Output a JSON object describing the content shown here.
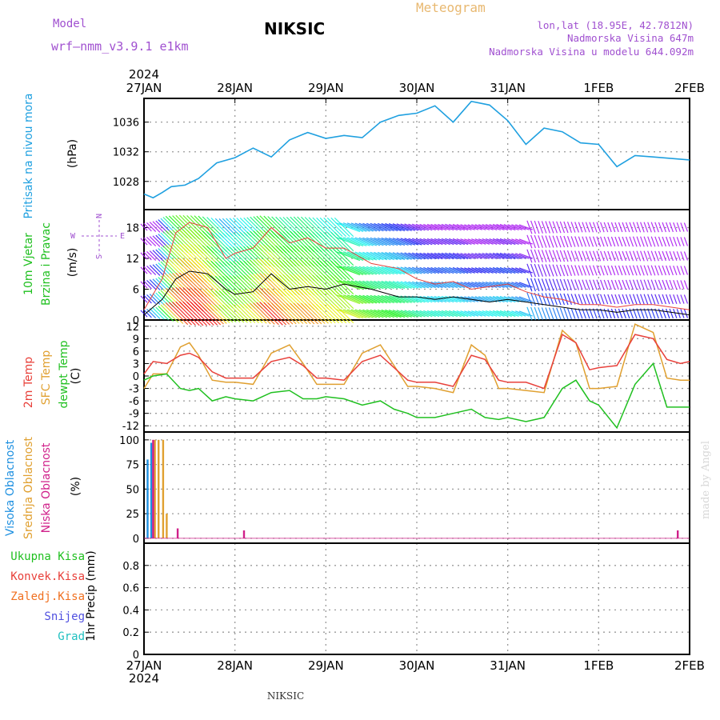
{
  "header": {
    "model_label": "Model",
    "model_name": "wrf—nmm_v3.9.1  e1km",
    "station": "NIKSIC",
    "title": "Meteogram",
    "lonlat": "lon,lat (18.95E, 42.7812N)",
    "elevation": "Nadmorska Visina 647m",
    "model_elevation": "Nadmorska Visina u modelu 644.092m",
    "footer_station": "NIKSIC",
    "credit": "made by Angel"
  },
  "colors": {
    "pressure": "#1fa0e0",
    "wind_black": "#000000",
    "t2m": "#e8403a",
    "sfc": "#e0a030",
    "dew": "#20c020",
    "high_cloud": "#1e90e0",
    "mid_cloud": "#e0a030",
    "low_cloud": "#d0208a",
    "grid": "#9a9a9a",
    "model_text": "#a050d0",
    "title_text": "#e8b870"
  },
  "chart_data": [
    {
      "type": "line",
      "panel": "pressure",
      "ylabel_left": "Pritisak na nivou mora",
      "unit": "(hPa)",
      "x_ticks": [
        "27JAN",
        "28JAN",
        "29JAN",
        "30JAN",
        "31JAN",
        "1FEB",
        "2FEB"
      ],
      "year": "2024",
      "ylim": [
        1024.2,
        1039.2
      ],
      "y_ticks": [
        1028,
        1032,
        1036
      ],
      "grid": true,
      "series": [
        {
          "key": "pressure",
          "x": [
            0,
            0.1,
            0.2,
            0.3,
            0.45,
            0.6,
            0.8,
            1.0,
            1.2,
            1.4,
            1.6,
            1.8,
            2.0,
            2.2,
            2.4,
            2.6,
            2.8,
            3.0,
            3.2,
            3.4,
            3.6,
            3.8,
            4.0,
            4.2,
            4.4,
            4.6,
            4.8,
            5.0,
            5.2,
            5.4,
            5.6,
            5.8,
            6.0
          ],
          "values": [
            1026.3,
            1025.8,
            1026.5,
            1027.3,
            1027.5,
            1028.4,
            1030.5,
            1031.2,
            1032.5,
            1031.3,
            1033.6,
            1034.6,
            1033.8,
            1034.2,
            1033.9,
            1036.0,
            1036.9,
            1037.2,
            1038.2,
            1036.0,
            1038.8,
            1038.3,
            1036.2,
            1033.0,
            1035.2,
            1034.7,
            1033.2,
            1033.0,
            1030.0,
            1031.5,
            1031.3,
            1031.1,
            1030.9
          ]
        }
      ]
    },
    {
      "type": "line",
      "panel": "wind",
      "ylabel_left": [
        "10m Vjetar",
        "Brzina i Pravac"
      ],
      "unit": "(m/s)",
      "compass": {
        "n": "N",
        "s": "S",
        "w": "W",
        "e": "E"
      },
      "ylim": [
        0,
        21.5
      ],
      "y_ticks": [
        0,
        6,
        12,
        18
      ],
      "grid": true,
      "series": [
        {
          "key": "wind_speed",
          "x": [
            0,
            0.2,
            0.35,
            0.5,
            0.7,
            0.9,
            1.0,
            1.2,
            1.4,
            1.6,
            1.8,
            2.0,
            2.2,
            2.5,
            2.8,
            3.0,
            3.2,
            3.4,
            3.6,
            3.8,
            4.0,
            4.2,
            4.4,
            4.6,
            4.8,
            5.0,
            5.2,
            5.4,
            5.6,
            5.8,
            6.0
          ],
          "values": [
            1.0,
            4.0,
            8.0,
            9.5,
            9.0,
            6.0,
            5.0,
            5.5,
            9.0,
            6.0,
            6.5,
            6.0,
            7.0,
            6.0,
            4.5,
            4.5,
            4.0,
            4.5,
            4.0,
            3.5,
            4.0,
            3.5,
            3.0,
            2.5,
            2.0,
            2.0,
            1.5,
            2.0,
            2.0,
            1.5,
            1.0
          ]
        },
        {
          "key": "wind_gust",
          "x": [
            0,
            0.2,
            0.35,
            0.5,
            0.7,
            0.9,
            1.0,
            1.2,
            1.4,
            1.6,
            1.8,
            2.0,
            2.2,
            2.5,
            2.8,
            3.0,
            3.2,
            3.4,
            3.6,
            3.8,
            4.0,
            4.2,
            4.4,
            4.6,
            4.8,
            5.0,
            5.2,
            5.4,
            5.6,
            5.8,
            6.0
          ],
          "values": [
            2.0,
            8.0,
            17.0,
            19.0,
            18.0,
            12.0,
            13.0,
            14.0,
            18.0,
            15.0,
            16.0,
            14.0,
            14.0,
            11.0,
            10.0,
            8.0,
            7.0,
            7.5,
            6.0,
            6.5,
            7.0,
            5.5,
            4.5,
            4.0,
            3.0,
            3.0,
            2.5,
            3.0,
            3.0,
            2.5,
            2.0
          ]
        }
      ]
    },
    {
      "type": "line",
      "panel": "temperature",
      "ylabel_left": [
        "2m Temp",
        "SFC Temp",
        "dewpt Temp"
      ],
      "unit": "(C)",
      "ylim": [
        -13.5,
        13.5
      ],
      "y_ticks": [
        -12,
        -9,
        -6,
        -3,
        0,
        3,
        6,
        9,
        12
      ],
      "grid": true,
      "series": [
        {
          "key": "t2m",
          "x": [
            0,
            0.1,
            0.25,
            0.4,
            0.5,
            0.6,
            0.75,
            0.9,
            1.0,
            1.2,
            1.4,
            1.6,
            1.75,
            1.9,
            2.0,
            2.2,
            2.4,
            2.6,
            2.75,
            2.9,
            3.0,
            3.2,
            3.4,
            3.6,
            3.75,
            3.9,
            4.0,
            4.2,
            4.4,
            4.6,
            4.75,
            4.9,
            5.0,
            5.2,
            5.4,
            5.6,
            5.75,
            5.9,
            6.0
          ],
          "values": [
            0.5,
            3.5,
            3.0,
            5.0,
            5.5,
            4.5,
            1.0,
            -0.5,
            -0.5,
            -0.5,
            3.5,
            4.5,
            2.5,
            -0.5,
            -0.5,
            -1.0,
            3.5,
            5.0,
            2.0,
            -1.0,
            -1.5,
            -1.5,
            -2.5,
            5.0,
            4.0,
            -1.0,
            -1.5,
            -1.5,
            -3.0,
            10.0,
            8.0,
            1.5,
            2.0,
            2.5,
            10.0,
            9.0,
            4.0,
            3.0,
            3.5
          ]
        },
        {
          "key": "sfc",
          "x": [
            0,
            0.1,
            0.25,
            0.4,
            0.5,
            0.6,
            0.75,
            0.9,
            1.0,
            1.2,
            1.4,
            1.6,
            1.75,
            1.9,
            2.0,
            2.2,
            2.4,
            2.6,
            2.75,
            2.9,
            3.0,
            3.2,
            3.4,
            3.6,
            3.75,
            3.9,
            4.0,
            4.2,
            4.4,
            4.6,
            4.75,
            4.9,
            5.0,
            5.2,
            5.4,
            5.6,
            5.75,
            5.9,
            6.0
          ],
          "values": [
            -3.0,
            0.5,
            0.5,
            7.0,
            8.0,
            5.0,
            -1.0,
            -1.5,
            -1.5,
            -2.0,
            5.5,
            7.5,
            3.0,
            -2.0,
            -2.0,
            -2.0,
            5.5,
            7.5,
            2.5,
            -2.5,
            -2.5,
            -3.0,
            -4.0,
            7.5,
            5.0,
            -3.0,
            -3.0,
            -3.5,
            -4.0,
            11.0,
            8.0,
            -3.0,
            -3.0,
            -2.5,
            12.5,
            10.5,
            -0.5,
            -1.0,
            -1.0
          ]
        },
        {
          "key": "dew",
          "x": [
            0,
            0.1,
            0.25,
            0.4,
            0.5,
            0.6,
            0.75,
            0.9,
            1.0,
            1.2,
            1.4,
            1.6,
            1.75,
            1.9,
            2.0,
            2.2,
            2.4,
            2.6,
            2.75,
            2.9,
            3.0,
            3.2,
            3.4,
            3.6,
            3.75,
            3.9,
            4.0,
            4.2,
            4.4,
            4.6,
            4.75,
            4.9,
            5.0,
            5.2,
            5.4,
            5.6,
            5.75,
            5.9,
            6.0
          ],
          "values": [
            -1.0,
            0.0,
            0.5,
            -3.0,
            -3.5,
            -3.0,
            -6.0,
            -5.0,
            -5.5,
            -6.0,
            -4.0,
            -3.5,
            -5.5,
            -5.5,
            -5.0,
            -5.5,
            -7.0,
            -6.0,
            -8.0,
            -9.0,
            -10.0,
            -10.0,
            -9.0,
            -8.0,
            -10.0,
            -10.5,
            -10.0,
            -11.0,
            -10.0,
            -3.0,
            -1.0,
            -6.0,
            -7.0,
            -12.5,
            -2.0,
            3.0,
            -7.5,
            -7.5,
            -7.5
          ]
        }
      ]
    },
    {
      "type": "bar",
      "panel": "clouds",
      "ylabel_left": [
        "Visoka Oblacnost",
        "Srednja Oblacnost",
        "Niska Oblacnost"
      ],
      "unit": "(%)",
      "ylim": [
        -5,
        108
      ],
      "y_ticks": [
        0,
        25,
        50,
        75,
        100
      ],
      "grid": true,
      "series": [
        {
          "key": "high_cloud",
          "x": [
            0.04,
            0.08
          ],
          "values": [
            80,
            97
          ]
        },
        {
          "key": "mid_cloud",
          "x": [
            0.12,
            0.16,
            0.21,
            0.25
          ],
          "values": [
            100,
            100,
            100,
            25
          ]
        },
        {
          "key": "low_cloud",
          "x": [
            0.1,
            0.37,
            1.1,
            5.87
          ],
          "values": [
            100,
            10,
            8,
            8
          ]
        }
      ]
    },
    {
      "type": "bar",
      "panel": "precip",
      "ylabel_left": [
        "Ukupna Kisa",
        "Konvek.Kisa",
        "Zaledj.Kisa",
        "Snijeg",
        "Grad"
      ],
      "unit": "1hr Precip (mm)",
      "ylim": [
        0,
        1.0
      ],
      "y_ticks": [
        0,
        0.2,
        0.4,
        0.6,
        0.8
      ],
      "grid": true,
      "series": [
        {
          "key": "total_rain",
          "x": [],
          "values": []
        },
        {
          "key": "convective_rain",
          "x": [],
          "values": []
        },
        {
          "key": "freezing_rain",
          "x": [],
          "values": []
        },
        {
          "key": "snow",
          "x": [],
          "values": []
        },
        {
          "key": "hail",
          "x": [],
          "values": []
        }
      ]
    }
  ]
}
